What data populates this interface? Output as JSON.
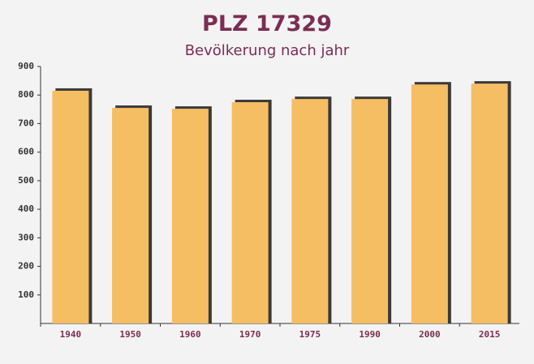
{
  "chart_data": {
    "type": "bar",
    "title": "PLZ 17329",
    "subtitle": "Bevölkerung nach jahr",
    "categories": [
      "1940",
      "1950",
      "1960",
      "1970",
      "1975",
      "1990",
      "2000",
      "2015"
    ],
    "values": [
      815,
      755,
      752,
      775,
      786,
      786,
      837,
      840
    ],
    "color": "#f5be63",
    "ylim": [
      0,
      900
    ],
    "yticks": [
      100,
      200,
      300,
      400,
      500,
      600,
      700,
      800,
      900
    ]
  }
}
